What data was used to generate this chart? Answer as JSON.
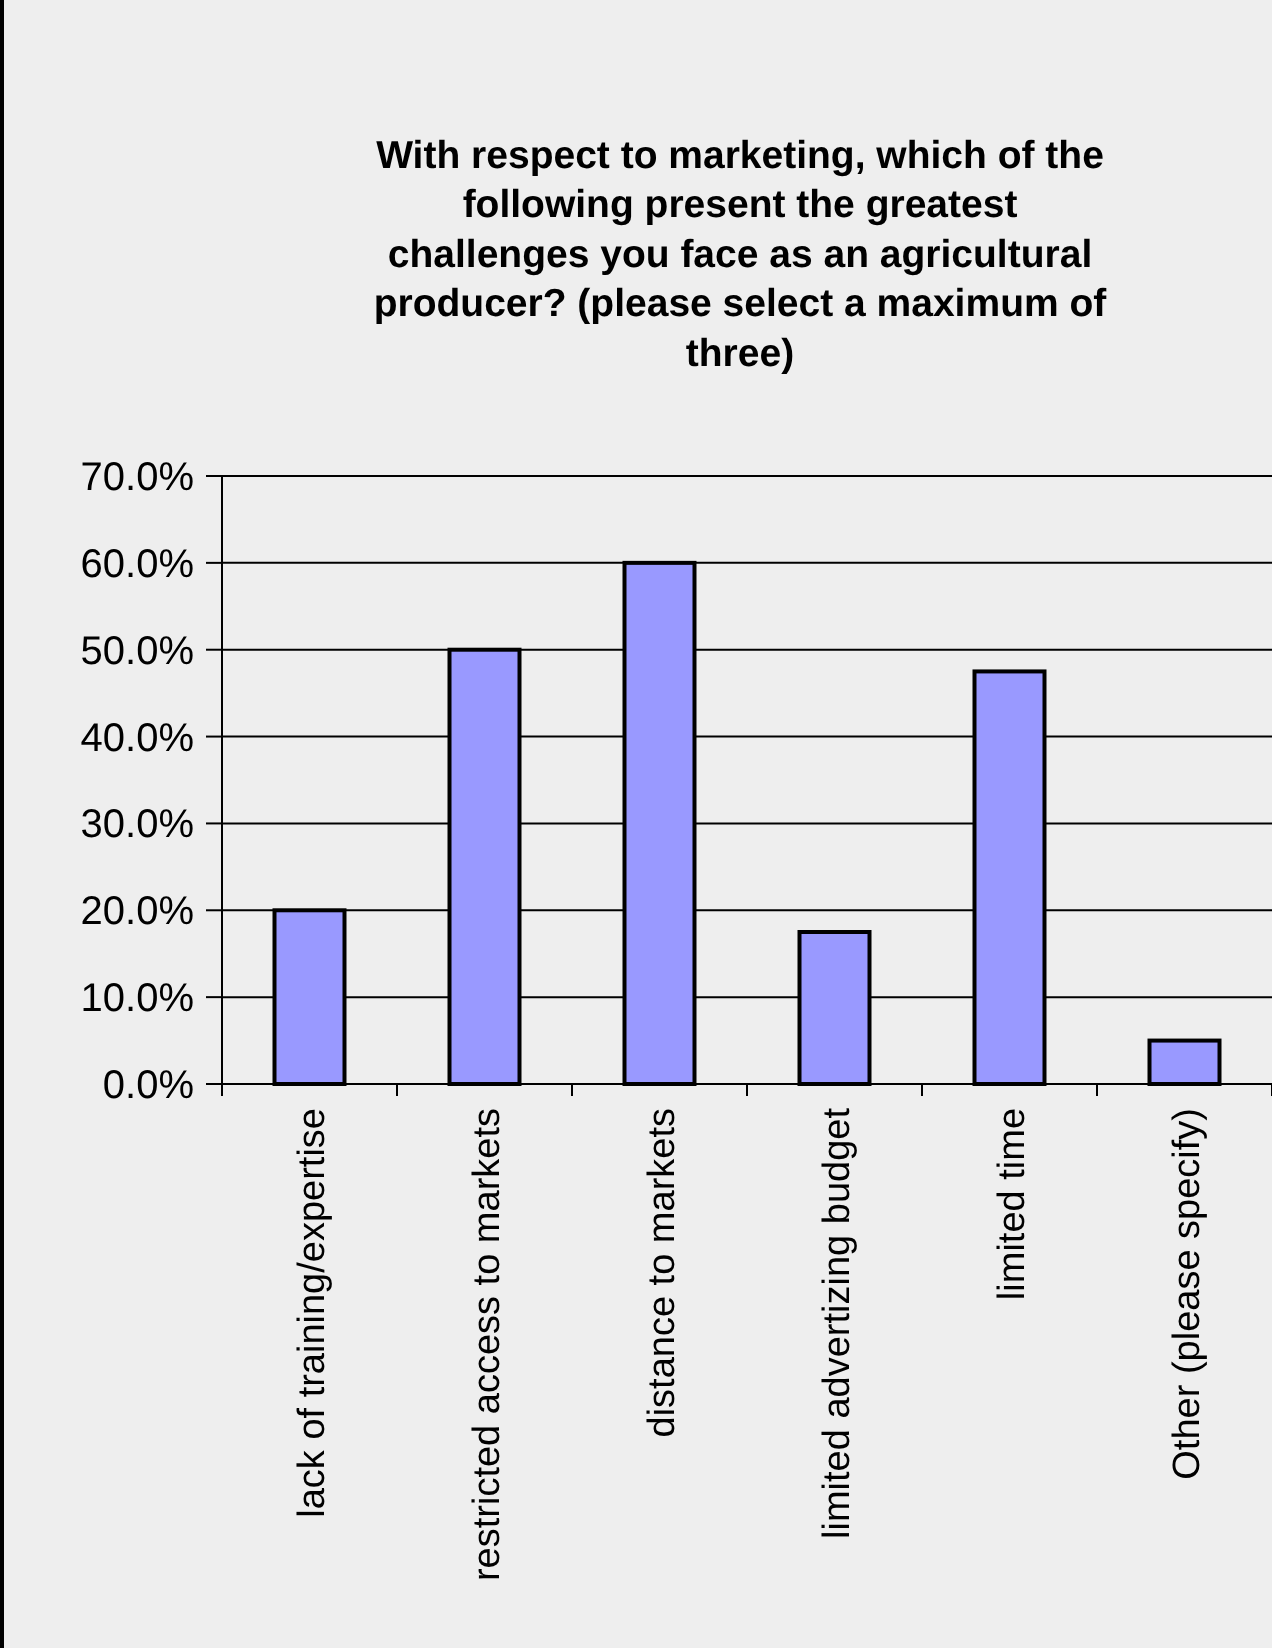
{
  "chart_data": {
    "type": "bar",
    "title": "With respect to marketing, which of the following present the greatest challenges you face as an agricultural producer? (please select a maximum of three)",
    "categories": [
      "lack of training/expertise",
      "restricted access to markets",
      "distance to markets",
      "limited advertizing budget",
      "limited time",
      "Other (please specify)"
    ],
    "values": [
      20,
      50,
      60,
      17.5,
      47.5,
      5
    ],
    "color": "#9999ff",
    "ylim": [
      0,
      70
    ],
    "yticks": [
      {
        "value": 0,
        "label": "0.0%"
      },
      {
        "value": 10,
        "label": "10.0%"
      },
      {
        "value": 20,
        "label": "20.0%"
      },
      {
        "value": 30,
        "label": "30.0%"
      },
      {
        "value": 40,
        "label": "40.0%"
      },
      {
        "value": 50,
        "label": "50.0%"
      },
      {
        "value": 60,
        "label": "60.0%"
      },
      {
        "value": 70,
        "label": "70.0%"
      }
    ],
    "grid": "y"
  }
}
